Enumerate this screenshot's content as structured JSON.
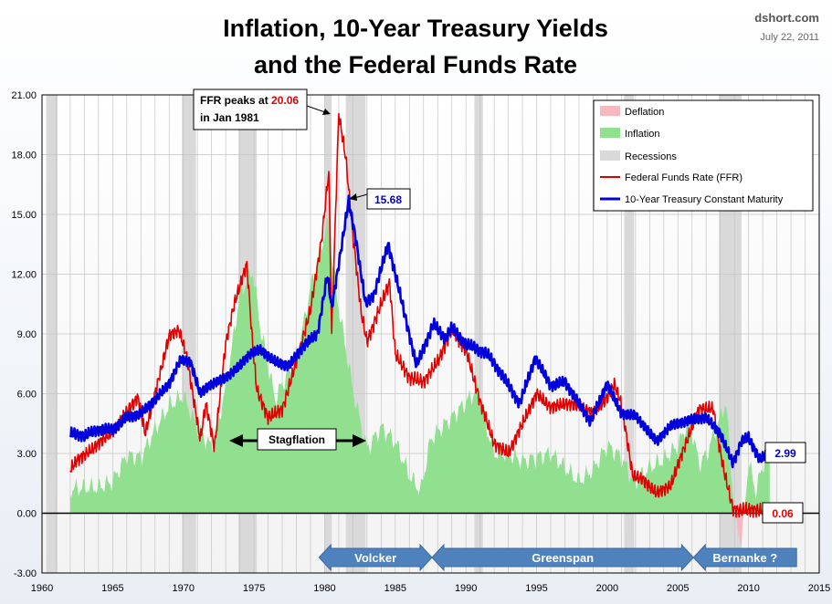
{
  "title": [
    "Inflation, 10-Year Treasury Yields",
    "and the Federal Funds Rate"
  ],
  "source": "dshort.com",
  "date": "July 22, 2011",
  "colors": {
    "inflation": "#90e090",
    "deflation": "#f7b8c0",
    "recession": "#d9d9d9",
    "ffr": "#e00000",
    "treasury": "#0000dd",
    "era_arrow": "#4f81bd"
  },
  "legend": [
    {
      "key": "deflation",
      "label": "Deflation"
    },
    {
      "key": "inflation",
      "label": "Inflation"
    },
    {
      "key": "recession",
      "label": "Recessions"
    },
    {
      "key": "ffr",
      "label": "Federal Funds Rate (FFR)"
    },
    {
      "key": "treasury",
      "label": "10-Year Treasury Constant Maturity"
    }
  ],
  "callouts": {
    "ffr_peak": {
      "prefix": "FFR peaks at ",
      "value": "20.06",
      "line2": "in Jan 1981"
    },
    "treasury_peak": "15.68",
    "treasury_last": "2.99",
    "ffr_last": "0.06",
    "stagflation": "Stagflation"
  },
  "eras": [
    {
      "label": "Volcker",
      "start": 1979.6,
      "end": 1987.6
    },
    {
      "label": "Greenspan",
      "start": 1987.6,
      "end": 2006.1
    },
    {
      "label": "Bernanke  ?",
      "start": 2006.1,
      "end": 2013.4
    }
  ],
  "chart_data": {
    "type": "line",
    "x_range": [
      1960,
      2015
    ],
    "ylim": [
      -3,
      21
    ],
    "x_ticks": [
      "1960",
      "1965",
      "1970",
      "1975",
      "1980",
      "1985",
      "1990",
      "1995",
      "2000",
      "2005",
      "2010",
      "2015"
    ],
    "y_ticks": [
      "-3.00",
      "0.00",
      "3.00",
      "6.00",
      "9.00",
      "12.00",
      "15.00",
      "18.00",
      "21.00"
    ],
    "grid": true,
    "legend_position": "top-right",
    "recessions": [
      [
        1960.3,
        1961.1
      ],
      [
        1969.9,
        1970.9
      ],
      [
        1973.9,
        1975.2
      ],
      [
        1980.0,
        1980.5
      ],
      [
        1981.5,
        1982.9
      ],
      [
        1990.6,
        1991.2
      ],
      [
        2001.2,
        2001.9
      ],
      [
        2007.9,
        2009.5
      ]
    ],
    "series": [
      {
        "name": "Federal Funds Rate (FFR)",
        "x": [
          1962.0,
          1962.5,
          1963.0,
          1964.0,
          1965.0,
          1966.0,
          1966.8,
          1967.3,
          1968.0,
          1969.0,
          1969.7,
          1970.2,
          1971.2,
          1971.6,
          1972.2,
          1973.0,
          1973.6,
          1974.5,
          1974.9,
          1975.2,
          1976.0,
          1977.0,
          1978.0,
          1979.0,
          1979.8,
          1980.3,
          1980.5,
          1981.0,
          1981.5,
          1982.0,
          1982.6,
          1983.0,
          1984.0,
          1984.6,
          1985.0,
          1986.0,
          1987.0,
          1988.0,
          1989.0,
          1990.0,
          1991.0,
          1992.0,
          1993.0,
          1994.0,
          1995.0,
          1996.0,
          1997.0,
          1998.0,
          1999.0,
          2000.0,
          2000.5,
          2001.0,
          2001.8,
          2002.5,
          2003.5,
          2004.5,
          2005.5,
          2006.5,
          2007.5,
          2007.9,
          2008.3,
          2008.9,
          2009.5,
          2010.5,
          2011.5
        ],
        "y": [
          2.2,
          2.7,
          2.9,
          3.5,
          4.1,
          5.1,
          5.8,
          4.0,
          6.0,
          8.9,
          9.2,
          8.0,
          3.7,
          5.5,
          3.3,
          8.5,
          10.5,
          12.5,
          8.5,
          6.2,
          4.8,
          5.2,
          7.6,
          10.2,
          13.8,
          17.2,
          9.0,
          20.06,
          17.8,
          14.0,
          10.0,
          8.6,
          10.5,
          11.6,
          8.0,
          6.8,
          6.6,
          7.6,
          9.2,
          8.2,
          5.6,
          3.5,
          3.0,
          4.5,
          6.0,
          5.3,
          5.5,
          5.4,
          5.0,
          5.8,
          6.5,
          5.5,
          1.9,
          1.7,
          1.0,
          1.4,
          3.4,
          5.25,
          5.25,
          3.5,
          2.0,
          0.2,
          0.15,
          0.18,
          0.06
        ]
      },
      {
        "name": "10-Year Treasury Constant Maturity",
        "x": [
          1962.0,
          1963.0,
          1964.0,
          1965.0,
          1966.0,
          1967.0,
          1968.0,
          1969.0,
          1969.8,
          1970.5,
          1971.2,
          1971.8,
          1973.0,
          1974.0,
          1974.7,
          1975.5,
          1976.5,
          1977.5,
          1978.5,
          1979.5,
          1980.2,
          1980.5,
          1981.0,
          1981.7,
          1982.2,
          1982.9,
          1983.5,
          1984.5,
          1985.5,
          1986.5,
          1987.7,
          1988.5,
          1989.0,
          1990.0,
          1991.5,
          1992.5,
          1993.8,
          1994.9,
          1996.0,
          1997.0,
          1998.8,
          2000.0,
          2001.0,
          2002.0,
          2003.5,
          2004.5,
          2006.0,
          2007.0,
          2008.0,
          2008.9,
          2009.5,
          2010.0,
          2010.8,
          2011.5
        ],
        "y": [
          4.0,
          3.9,
          4.2,
          4.2,
          4.8,
          5.0,
          5.7,
          6.5,
          7.7,
          7.6,
          6.0,
          6.4,
          6.8,
          7.4,
          8.0,
          8.2,
          7.6,
          7.4,
          8.4,
          9.0,
          12.0,
          10.3,
          12.5,
          15.68,
          13.8,
          10.5,
          11.0,
          13.5,
          10.5,
          7.4,
          9.5,
          8.8,
          9.3,
          8.5,
          8.0,
          7.0,
          5.5,
          7.8,
          6.4,
          6.6,
          4.6,
          6.5,
          5.0,
          4.9,
          3.6,
          4.4,
          4.7,
          4.8,
          4.0,
          2.5,
          3.6,
          3.8,
          2.7,
          2.99
        ]
      },
      {
        "name": "Inflation",
        "x": [
          1962.0,
          1963.0,
          1964.0,
          1965.0,
          1966.0,
          1967.0,
          1968.0,
          1969.0,
          1970.0,
          1971.0,
          1972.0,
          1973.0,
          1974.0,
          1974.9,
          1975.5,
          1976.5,
          1977.0,
          1978.0,
          1979.0,
          1980.2,
          1981.0,
          1982.0,
          1983.0,
          1984.0,
          1985.0,
          1986.0,
          1986.8,
          1987.5,
          1988.0,
          1989.0,
          1990.8,
          1991.5,
          1992.0,
          1993.0,
          1994.0,
          1995.0,
          1996.0,
          1997.0,
          1998.0,
          1999.0,
          2000.0,
          2001.0,
          2001.9,
          2003.0,
          2004.0,
          2005.0,
          2005.8,
          2006.5,
          2007.0,
          2008.4,
          2009.0,
          2009.5,
          2010.0,
          2010.5,
          2011.5
        ],
        "y": [
          1.2,
          1.3,
          1.3,
          1.6,
          2.9,
          2.8,
          4.2,
          5.4,
          5.9,
          4.3,
          3.3,
          6.2,
          11.0,
          12.2,
          9.1,
          5.7,
          6.5,
          7.6,
          11.3,
          14.6,
          10.3,
          6.2,
          3.2,
          4.3,
          3.6,
          1.9,
          1.1,
          3.7,
          4.1,
          4.8,
          6.2,
          4.2,
          3.0,
          3.0,
          2.6,
          2.8,
          3.0,
          2.3,
          1.6,
          2.2,
          3.4,
          2.8,
          1.5,
          2.3,
          2.7,
          3.4,
          4.7,
          2.5,
          2.9,
          5.6,
          0.0,
          -1.5,
          2.6,
          1.1,
          3.6
        ]
      }
    ]
  }
}
